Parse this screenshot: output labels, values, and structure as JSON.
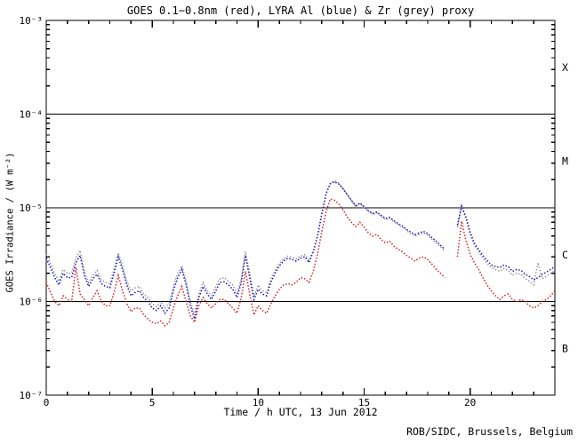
{
  "credit": "ROB/SIDC, Brussels, Belgium",
  "colors": {
    "background": "#ffffff",
    "axis": "#000000"
  },
  "chart_data": {
    "type": "line",
    "title": "GOES 0.1−0.8nm (red), LYRA Al (blue) & Zr (grey) proxy",
    "xlabel": "Time / h UTC, 13 Jun 2012",
    "ylabel": "GOES Irradiance / (W m⁻²)",
    "xlim": [
      0,
      24
    ],
    "ylim_log10": [
      -7,
      -3
    ],
    "x_minor_step_hours": 1,
    "x_ticks_major": [
      0,
      5,
      10,
      15,
      20
    ],
    "x_tick_labels": [
      "0",
      "5",
      "10",
      "15",
      "20"
    ],
    "y_ticks": [
      {
        "value": 0.001,
        "label": "10⁻³"
      },
      {
        "value": 0.0001,
        "label": "10⁻⁴"
      },
      {
        "value": 1e-05,
        "label": "10⁻⁵"
      },
      {
        "value": 1e-06,
        "label": "10⁻⁶"
      },
      {
        "value": 1e-07,
        "label": "10⁻⁷"
      }
    ],
    "hlines": [
      0.0001,
      1e-05,
      1e-06
    ],
    "flare_classes": [
      {
        "label": "X",
        "band_log10": [
          -4,
          -3
        ]
      },
      {
        "label": "M",
        "band_log10": [
          -5,
          -4
        ]
      },
      {
        "label": "C",
        "band_log10": [
          -6,
          -5
        ]
      },
      {
        "label": "B",
        "band_log10": [
          -7,
          -6
        ]
      }
    ],
    "grid": false,
    "legend": "encoded in title (red / blue / grey)",
    "value_unit": "1e-6 W m^-2 (microwatt per square metre)",
    "x": [
      0,
      0.2,
      0.4,
      0.6,
      0.8,
      1.0,
      1.2,
      1.4,
      1.6,
      1.8,
      2.0,
      2.2,
      2.4,
      2.6,
      2.8,
      3.0,
      3.2,
      3.4,
      3.6,
      3.8,
      4.0,
      4.2,
      4.4,
      4.6,
      4.8,
      5.0,
      5.2,
      5.4,
      5.6,
      5.8,
      6.0,
      6.2,
      6.4,
      6.6,
      6.8,
      7.0,
      7.2,
      7.4,
      7.6,
      7.8,
      8.0,
      8.2,
      8.4,
      8.6,
      8.8,
      9.0,
      9.2,
      9.4,
      9.6,
      9.8,
      10.0,
      10.2,
      10.4,
      10.6,
      10.8,
      11.0,
      11.2,
      11.4,
      11.6,
      11.8,
      12.0,
      12.2,
      12.4,
      12.6,
      12.8,
      13.0,
      13.2,
      13.4,
      13.6,
      13.8,
      14.0,
      14.2,
      14.4,
      14.6,
      14.8,
      15.0,
      15.2,
      15.4,
      15.6,
      15.8,
      16.0,
      16.2,
      16.4,
      16.6,
      16.8,
      17.0,
      17.2,
      17.4,
      17.6,
      17.8,
      18.0,
      18.2,
      18.4,
      18.6,
      18.8,
      19.0,
      19.2,
      19.4,
      19.6,
      19.8,
      20.0,
      20.2,
      20.4,
      20.6,
      20.8,
      21.0,
      21.2,
      21.4,
      21.6,
      21.8,
      22.0,
      22.2,
      22.4,
      22.6,
      22.8,
      23.0,
      23.2,
      23.4,
      23.6,
      23.8,
      24.0
    ],
    "series": [
      {
        "id": "goes-xray",
        "name": "GOES 0.1-0.8nm",
        "color": "#d42020",
        "style": "dotted",
        "values_uW": [
          1.6,
          1.25,
          1.0,
          0.9,
          1.15,
          1.05,
          1.0,
          2.3,
          1.2,
          1.05,
          0.9,
          1.1,
          1.3,
          1.0,
          0.9,
          0.9,
          1.25,
          1.9,
          1.3,
          0.95,
          0.78,
          0.85,
          0.85,
          0.72,
          0.65,
          0.6,
          0.58,
          0.62,
          0.55,
          0.6,
          0.85,
          1.15,
          1.45,
          1.0,
          0.7,
          0.6,
          0.9,
          1.1,
          0.95,
          0.85,
          0.95,
          1.05,
          1.05,
          0.95,
          0.85,
          0.75,
          1.1,
          2.1,
          1.2,
          0.72,
          0.9,
          0.8,
          0.75,
          0.95,
          1.15,
          1.35,
          1.5,
          1.55,
          1.5,
          1.6,
          1.8,
          1.75,
          1.6,
          2.1,
          3.2,
          5.5,
          9.0,
          12.4,
          12.0,
          11.0,
          9.5,
          8.0,
          7.0,
          6.3,
          7.0,
          6.2,
          5.4,
          5.0,
          5.2,
          4.6,
          4.2,
          4.4,
          3.9,
          3.6,
          3.4,
          3.1,
          2.9,
          2.7,
          2.9,
          3.0,
          2.8,
          2.5,
          2.2,
          2.0,
          1.8,
          null,
          null,
          3.0,
          7.2,
          4.5,
          3.2,
          2.6,
          2.2,
          1.8,
          1.5,
          1.3,
          1.15,
          1.05,
          1.15,
          1.2,
          1.05,
          1.0,
          1.05,
          1.0,
          0.9,
          0.85,
          0.9,
          1.0,
          1.05,
          1.15,
          1.3
        ]
      },
      {
        "id": "lyra-al-proxy",
        "name": "LYRA Al proxy",
        "color": "#1515bb",
        "style": "dotted",
        "values_uW": [
          2.9,
          2.3,
          1.8,
          1.5,
          2.0,
          1.8,
          1.8,
          2.6,
          3.1,
          1.9,
          1.45,
          1.75,
          1.95,
          1.55,
          1.45,
          1.4,
          2.0,
          3.0,
          2.2,
          1.5,
          1.15,
          1.25,
          1.3,
          1.1,
          1.0,
          0.85,
          0.8,
          0.9,
          0.75,
          0.85,
          1.3,
          1.8,
          2.2,
          1.5,
          0.9,
          0.65,
          1.1,
          1.45,
          1.2,
          1.05,
          1.3,
          1.6,
          1.62,
          1.5,
          1.35,
          1.1,
          1.6,
          3.1,
          1.8,
          1.05,
          1.35,
          1.2,
          1.15,
          1.6,
          2.0,
          2.4,
          2.7,
          2.9,
          2.8,
          2.7,
          2.9,
          3.0,
          2.6,
          3.4,
          5.0,
          8.5,
          14.0,
          18.0,
          19.0,
          18.0,
          16.0,
          13.8,
          12.0,
          10.5,
          11.2,
          10.3,
          9.3,
          8.7,
          9.0,
          8.3,
          7.7,
          7.9,
          7.3,
          6.8,
          6.4,
          5.9,
          5.5,
          5.2,
          5.4,
          5.6,
          5.3,
          4.8,
          4.4,
          4.0,
          3.6,
          null,
          null,
          6.5,
          10.5,
          8.0,
          5.5,
          4.2,
          3.6,
          3.1,
          2.75,
          2.45,
          2.35,
          2.3,
          2.45,
          2.35,
          2.1,
          2.2,
          2.15,
          1.95,
          1.85,
          1.7,
          1.8,
          1.95,
          2.05,
          2.2,
          2.35
        ]
      },
      {
        "id": "lyra-zr-proxy",
        "name": "LYRA Zr proxy",
        "color": "#979797",
        "style": "dotted",
        "values_uW": [
          3.2,
          2.55,
          2.0,
          1.65,
          2.2,
          2.0,
          2.0,
          2.9,
          3.5,
          2.1,
          1.6,
          1.9,
          2.15,
          1.7,
          1.6,
          1.55,
          2.2,
          3.3,
          2.4,
          1.65,
          1.3,
          1.4,
          1.45,
          1.2,
          1.1,
          0.95,
          0.88,
          1.0,
          0.85,
          0.95,
          1.45,
          2.0,
          2.4,
          1.65,
          1.0,
          0.72,
          1.2,
          1.6,
          1.3,
          1.15,
          1.45,
          1.75,
          1.8,
          1.65,
          1.5,
          1.2,
          1.75,
          3.4,
          2.0,
          1.15,
          1.5,
          1.3,
          1.25,
          1.75,
          2.15,
          2.55,
          2.85,
          3.05,
          2.95,
          2.85,
          3.05,
          3.15,
          2.75,
          3.5,
          5.1,
          8.6,
          14.2,
          18.4,
          19.4,
          18.4,
          16.2,
          13.9,
          12.0,
          10.4,
          11.1,
          10.1,
          9.1,
          8.5,
          8.8,
          8.1,
          7.5,
          7.7,
          7.1,
          6.6,
          6.2,
          5.7,
          5.3,
          5.0,
          5.2,
          5.4,
          5.1,
          4.6,
          4.2,
          3.85,
          3.45,
          null,
          null,
          6.2,
          10.2,
          7.7,
          5.2,
          4.0,
          3.4,
          2.9,
          2.55,
          2.3,
          2.2,
          2.1,
          2.25,
          2.15,
          1.9,
          2.0,
          1.95,
          1.75,
          1.65,
          1.5,
          2.6,
          1.75,
          1.85,
          2.0,
          2.15
        ]
      }
    ]
  }
}
